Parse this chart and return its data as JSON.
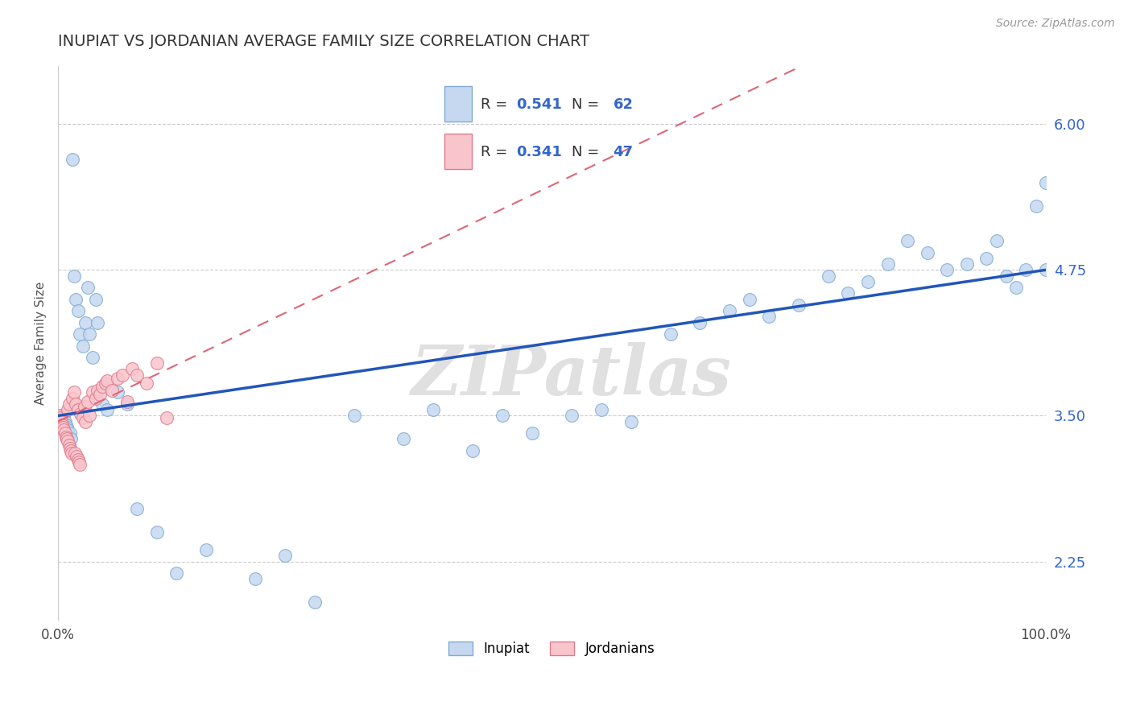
{
  "title": "INUPIAT VS JORDANIAN AVERAGE FAMILY SIZE CORRELATION CHART",
  "source_text": "Source: ZipAtlas.com",
  "ylabel": "Average Family Size",
  "watermark": "ZIPatlas",
  "xlim": [
    0.0,
    1.0
  ],
  "ylim": [
    1.75,
    6.5
  ],
  "yticks": [
    2.25,
    3.5,
    4.75,
    6.0
  ],
  "yticklabel_color": "#3366cc",
  "title_color": "#333333",
  "title_fontsize": 14,
  "inupiat_color": "#c5d8f0",
  "inupiat_edge": "#7faad4",
  "jordanian_color": "#f9c5cd",
  "jordanian_edge": "#e07a8a",
  "regression_line_inupiat_color": "#2255bb",
  "regression_line_jordanian_color": "#dd6677",
  "legend_r1": "0.541",
  "legend_n1": "62",
  "legend_r2": "0.341",
  "legend_n2": "47",
  "inupiat_x": [
    0.005,
    0.006,
    0.007,
    0.008,
    0.009,
    0.01,
    0.012,
    0.013,
    0.015,
    0.016,
    0.018,
    0.02,
    0.022,
    0.025,
    0.028,
    0.03,
    0.032,
    0.035,
    0.038,
    0.04,
    0.045,
    0.05,
    0.06,
    0.07,
    0.08,
    0.1,
    0.12,
    0.15,
    0.2,
    0.23,
    0.26,
    0.3,
    0.35,
    0.38,
    0.42,
    0.45,
    0.48,
    0.52,
    0.55,
    0.58,
    0.62,
    0.65,
    0.68,
    0.7,
    0.72,
    0.75,
    0.78,
    0.8,
    0.82,
    0.84,
    0.86,
    0.88,
    0.9,
    0.92,
    0.94,
    0.95,
    0.96,
    0.97,
    0.98,
    0.99,
    1.0,
    1.0
  ],
  "inupiat_y": [
    3.5,
    3.48,
    3.45,
    3.42,
    3.4,
    3.38,
    3.35,
    3.3,
    5.7,
    4.7,
    4.5,
    4.4,
    4.2,
    4.1,
    4.3,
    4.6,
    4.2,
    4.0,
    4.5,
    4.3,
    3.6,
    3.55,
    3.7,
    3.6,
    2.7,
    2.5,
    2.15,
    2.35,
    2.1,
    2.3,
    1.9,
    3.5,
    3.3,
    3.55,
    3.2,
    3.5,
    3.35,
    3.5,
    3.55,
    3.45,
    4.2,
    4.3,
    4.4,
    4.5,
    4.35,
    4.45,
    4.7,
    4.55,
    4.65,
    4.8,
    5.0,
    4.9,
    4.75,
    4.8,
    4.85,
    5.0,
    4.7,
    4.6,
    4.75,
    5.3,
    4.75,
    5.5
  ],
  "jordanian_x": [
    0.001,
    0.002,
    0.003,
    0.004,
    0.005,
    0.006,
    0.007,
    0.008,
    0.009,
    0.01,
    0.01,
    0.011,
    0.011,
    0.012,
    0.013,
    0.014,
    0.015,
    0.016,
    0.017,
    0.018,
    0.019,
    0.02,
    0.02,
    0.021,
    0.022,
    0.023,
    0.025,
    0.027,
    0.028,
    0.03,
    0.032,
    0.035,
    0.038,
    0.04,
    0.042,
    0.045,
    0.048,
    0.05,
    0.055,
    0.06,
    0.065,
    0.07,
    0.075,
    0.08,
    0.09,
    0.1,
    0.11
  ],
  "jordanian_y": [
    3.5,
    3.48,
    3.45,
    3.42,
    3.4,
    3.38,
    3.35,
    3.32,
    3.3,
    3.28,
    3.55,
    3.25,
    3.6,
    3.22,
    3.2,
    3.18,
    3.65,
    3.7,
    3.18,
    3.6,
    3.15,
    3.12,
    3.55,
    3.1,
    3.08,
    3.52,
    3.48,
    3.58,
    3.45,
    3.62,
    3.5,
    3.7,
    3.65,
    3.72,
    3.68,
    3.75,
    3.78,
    3.8,
    3.72,
    3.82,
    3.85,
    3.62,
    3.9,
    3.85,
    3.78,
    3.95,
    3.48
  ]
}
